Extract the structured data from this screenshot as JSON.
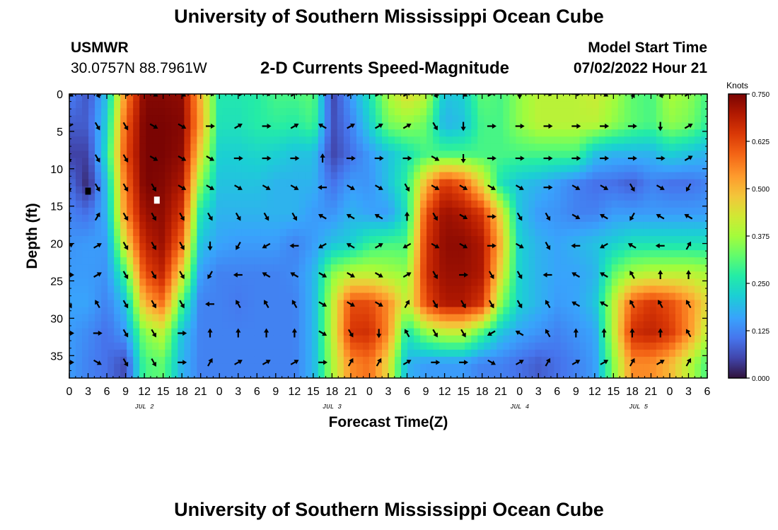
{
  "header": {
    "title": "University of Southern Mississippi Ocean Cube",
    "station_name": "USMWR",
    "station_coords": "30.0757N  88.7961W",
    "subtitle": "2-D Currents Speed-Magnitude",
    "model_start_label": "Model Start Time",
    "model_start_value": "07/02/2022 Hour 21"
  },
  "footer": {
    "title": "University of Southern Mississippi Ocean Cube"
  },
  "chart_data": {
    "type": "heatmap",
    "title": "2-D Currents Speed-Magnitude",
    "xlabel": "Forecast Time(Z)",
    "ylabel": "Depth (ft)",
    "x_unit": "hours since Jul 2 00Z",
    "xlim": [
      0,
      102
    ],
    "ylim": [
      0,
      38
    ],
    "x_ticks": [
      0,
      3,
      6,
      9,
      12,
      15,
      18,
      21,
      24,
      27,
      30,
      33,
      36,
      39,
      42,
      45,
      48,
      51,
      54,
      57,
      60,
      63,
      66,
      69,
      72,
      75,
      78,
      81,
      84,
      87,
      90,
      93,
      96,
      99,
      102
    ],
    "x_tick_labels": [
      "0",
      "3",
      "6",
      "9",
      "12",
      "15",
      "18",
      "21",
      "0",
      "3",
      "6",
      "9",
      "12",
      "15",
      "18",
      "21",
      "0",
      "3",
      "6",
      "9",
      "12",
      "15",
      "18",
      "21",
      "0",
      "3",
      "6",
      "9",
      "12",
      "15",
      "18",
      "21",
      "0",
      "3",
      "6"
    ],
    "y_ticks": [
      0,
      5,
      10,
      15,
      20,
      25,
      30,
      35
    ],
    "y_tick_labels": [
      "0",
      "5",
      "10",
      "15",
      "20",
      "25",
      "30",
      "35"
    ],
    "date_labels": [
      {
        "x": 12,
        "label": "JUL 2"
      },
      {
        "x": 42,
        "label": "JUL 3"
      },
      {
        "x": 72,
        "label": "JUL 4"
      },
      {
        "x": 91,
        "label": "JUL 5"
      }
    ],
    "colorbar": {
      "label": "Knots",
      "min": 0.0,
      "max": 0.75,
      "ticks": [
        0.0,
        0.125,
        0.25,
        0.375,
        0.5,
        0.625,
        0.75
      ],
      "tick_labels": [
        "0.000",
        "0.125",
        "0.250",
        "0.375",
        "0.500",
        "0.625",
        "0.750"
      ]
    },
    "speed_grid": {
      "x": [
        0,
        3,
        6,
        9,
        12,
        15,
        18,
        21,
        24,
        27,
        30,
        33,
        36,
        39,
        42,
        45,
        48,
        51,
        54,
        57,
        60,
        63,
        66,
        69,
        72,
        75,
        78,
        81,
        84,
        87,
        90,
        93,
        96,
        99,
        102
      ],
      "depth": [
        0,
        4,
        8,
        12,
        16,
        20,
        24,
        28,
        32,
        36
      ],
      "values": [
        [
          0.12,
          0.07,
          0.2,
          0.55,
          0.74,
          0.74,
          0.73,
          0.5,
          0.26,
          0.26,
          0.27,
          0.3,
          0.3,
          0.32,
          0.05,
          0.15,
          0.25,
          0.38,
          0.45,
          0.4,
          0.2,
          0.22,
          0.32,
          0.3,
          0.36,
          0.4,
          0.4,
          0.4,
          0.42,
          0.38,
          0.32,
          0.3,
          0.38,
          0.36,
          0.3
        ],
        [
          0.08,
          0.08,
          0.22,
          0.6,
          0.75,
          0.75,
          0.74,
          0.52,
          0.25,
          0.25,
          0.27,
          0.28,
          0.27,
          0.3,
          0.06,
          0.12,
          0.22,
          0.34,
          0.36,
          0.33,
          0.18,
          0.2,
          0.3,
          0.3,
          0.36,
          0.4,
          0.4,
          0.4,
          0.4,
          0.36,
          0.32,
          0.3,
          0.36,
          0.34,
          0.28
        ],
        [
          0.05,
          0.05,
          0.25,
          0.62,
          0.75,
          0.75,
          0.73,
          0.45,
          0.22,
          0.22,
          0.23,
          0.22,
          0.2,
          0.2,
          0.05,
          0.1,
          0.15,
          0.2,
          0.25,
          0.3,
          0.3,
          0.3,
          0.3,
          0.3,
          0.3,
          0.3,
          0.3,
          0.3,
          0.2,
          0.18,
          0.18,
          0.18,
          0.22,
          0.2,
          0.18
        ],
        [
          0.1,
          0.02,
          0.2,
          0.58,
          0.75,
          0.74,
          0.7,
          0.35,
          0.2,
          0.2,
          0.2,
          0.18,
          0.18,
          0.18,
          0.1,
          0.15,
          0.14,
          0.2,
          0.28,
          0.5,
          0.65,
          0.6,
          0.45,
          0.25,
          0.2,
          0.18,
          0.15,
          0.12,
          0.1,
          0.1,
          0.08,
          0.12,
          0.1,
          0.1,
          0.12
        ],
        [
          0.12,
          0.1,
          0.18,
          0.55,
          0.72,
          0.73,
          0.65,
          0.25,
          0.18,
          0.18,
          0.18,
          0.18,
          0.18,
          0.15,
          0.14,
          0.18,
          0.16,
          0.15,
          0.25,
          0.62,
          0.72,
          0.7,
          0.65,
          0.45,
          0.2,
          0.15,
          0.14,
          0.12,
          0.12,
          0.15,
          0.15,
          0.15,
          0.15,
          0.15,
          0.15
        ],
        [
          0.14,
          0.15,
          0.15,
          0.45,
          0.68,
          0.72,
          0.58,
          0.2,
          0.16,
          0.15,
          0.15,
          0.15,
          0.12,
          0.15,
          0.2,
          0.22,
          0.28,
          0.3,
          0.3,
          0.65,
          0.73,
          0.73,
          0.7,
          0.5,
          0.22,
          0.18,
          0.16,
          0.18,
          0.2,
          0.22,
          0.25,
          0.25,
          0.25,
          0.25,
          0.25
        ],
        [
          0.15,
          0.15,
          0.14,
          0.3,
          0.62,
          0.68,
          0.45,
          0.15,
          0.12,
          0.12,
          0.12,
          0.12,
          0.13,
          0.18,
          0.35,
          0.4,
          0.4,
          0.38,
          0.36,
          0.66,
          0.72,
          0.72,
          0.7,
          0.45,
          0.22,
          0.18,
          0.16,
          0.16,
          0.18,
          0.32,
          0.38,
          0.4,
          0.4,
          0.4,
          0.38
        ],
        [
          0.16,
          0.16,
          0.12,
          0.2,
          0.5,
          0.58,
          0.3,
          0.12,
          0.12,
          0.11,
          0.12,
          0.12,
          0.12,
          0.18,
          0.4,
          0.62,
          0.62,
          0.55,
          0.4,
          0.62,
          0.7,
          0.7,
          0.65,
          0.35,
          0.22,
          0.18,
          0.15,
          0.16,
          0.2,
          0.4,
          0.6,
          0.65,
          0.62,
          0.55,
          0.45
        ],
        [
          0.15,
          0.13,
          0.1,
          0.15,
          0.35,
          0.4,
          0.2,
          0.12,
          0.12,
          0.12,
          0.12,
          0.12,
          0.12,
          0.18,
          0.4,
          0.65,
          0.66,
          0.55,
          0.25,
          0.35,
          0.4,
          0.4,
          0.3,
          0.2,
          0.16,
          0.14,
          0.12,
          0.14,
          0.16,
          0.4,
          0.66,
          0.68,
          0.65,
          0.55,
          0.4
        ],
        [
          0.15,
          0.12,
          0.1,
          0.06,
          0.3,
          0.32,
          0.18,
          0.12,
          0.12,
          0.12,
          0.12,
          0.12,
          0.12,
          0.18,
          0.38,
          0.55,
          0.58,
          0.45,
          0.18,
          0.15,
          0.15,
          0.15,
          0.12,
          0.12,
          0.1,
          0.08,
          0.1,
          0.12,
          0.15,
          0.35,
          0.55,
          0.55,
          0.5,
          0.4,
          0.3
        ]
      ]
    },
    "vector_grid": {
      "x": [
        0,
        4.5,
        9,
        13.5,
        18,
        22.5,
        27,
        31.5,
        36,
        40.5,
        45,
        49.5,
        54,
        58.5,
        63,
        67.5,
        72,
        76.5,
        81,
        85.5,
        90,
        94.5,
        99
      ],
      "depth": [
        0,
        4.3,
        8.6,
        12.5,
        16.4,
        20.3,
        24.2,
        28.1,
        32,
        35.9
      ],
      "directions_deg": [
        [
          120,
          150,
          90,
          120,
          120,
          90,
          90,
          90,
          60,
          90,
          60,
          60,
          60,
          150,
          120,
          60,
          180,
          90,
          90,
          120,
          150,
          150,
          60
        ],
        [
          240,
          150,
          150,
          120,
          120,
          90,
          60,
          90,
          60,
          300,
          60,
          60,
          60,
          150,
          180,
          90,
          90,
          90,
          90,
          90,
          90,
          180,
          60
        ],
        [
          180,
          150,
          150,
          120,
          120,
          120,
          90,
          90,
          90,
          0,
          90,
          90,
          90,
          120,
          180,
          90,
          90,
          90,
          90,
          90,
          90,
          90,
          60
        ],
        [
          180,
          150,
          150,
          150,
          120,
          120,
          120,
          120,
          120,
          270,
          120,
          120,
          150,
          120,
          120,
          120,
          120,
          90,
          120,
          120,
          150,
          120,
          210
        ],
        [
          180,
          30,
          150,
          150,
          150,
          150,
          150,
          150,
          150,
          300,
          300,
          300,
          0,
          150,
          120,
          90,
          150,
          150,
          120,
          300,
          210,
          300,
          300
        ],
        [
          60,
          60,
          150,
          150,
          150,
          180,
          210,
          240,
          270,
          240,
          300,
          60,
          240,
          120,
          120,
          90,
          120,
          150,
          270,
          240,
          300,
          270,
          30
        ],
        [
          90,
          60,
          150,
          150,
          150,
          210,
          270,
          300,
          300,
          120,
          120,
          120,
          60,
          150,
          90,
          150,
          150,
          270,
          300,
          300,
          330,
          0,
          0
        ],
        [
          150,
          330,
          150,
          150,
          150,
          270,
          330,
          330,
          330,
          120,
          120,
          120,
          30,
          150,
          150,
          150,
          150,
          330,
          300,
          300,
          330,
          330,
          330
        ],
        [
          90,
          90,
          150,
          150,
          90,
          0,
          0,
          0,
          0,
          120,
          150,
          180,
          330,
          150,
          150,
          240,
          300,
          330,
          0,
          0,
          0,
          0,
          330
        ],
        [
          90,
          120,
          150,
          150,
          90,
          30,
          60,
          60,
          60,
          90,
          30,
          30,
          60,
          90,
          90,
          120,
          60,
          30,
          60,
          60,
          30,
          60,
          30
        ]
      ]
    },
    "markers": [
      {
        "x": 3,
        "depth": 13,
        "color": "#000000"
      },
      {
        "x": 14,
        "depth": 14.2,
        "color": "#ffffff"
      }
    ]
  }
}
